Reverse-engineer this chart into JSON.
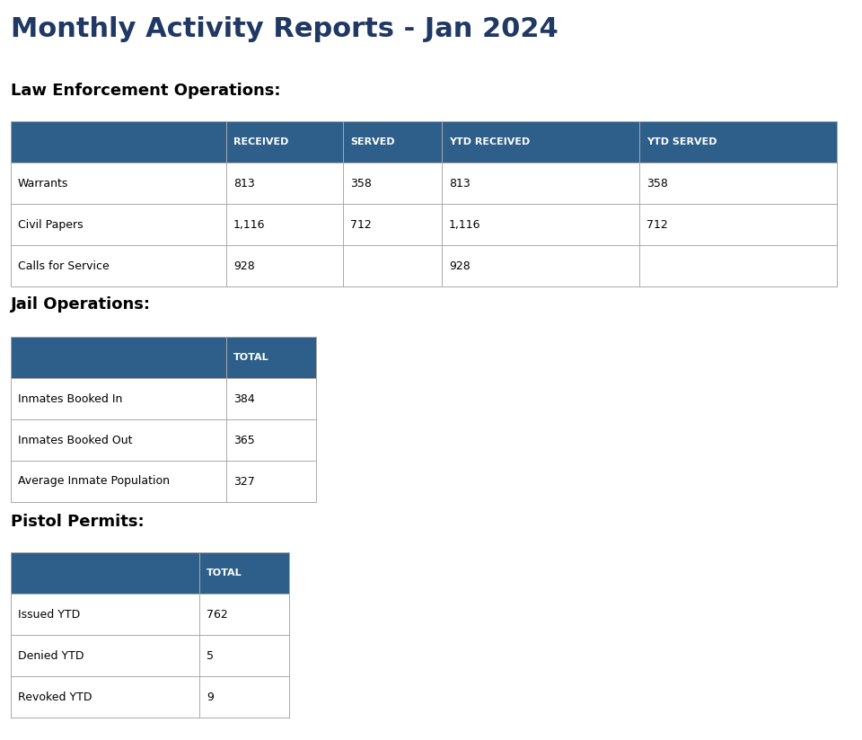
{
  "title": "Monthly Activity Reports - Jan 2024",
  "title_color": "#1F3864",
  "background_color": "#ffffff",
  "header_bg_color": "#2E5F8A",
  "header_text_color": "#ffffff",
  "row_text_color": "#000000",
  "border_color": "#aaaaaa",
  "section_label_color": "#000000",
  "law_section_title": "Law Enforcement Operations:",
  "law_columns": [
    "",
    "RECEIVED",
    "SERVED",
    "YTD RECEIVED",
    "YTD SERVED"
  ],
  "law_rows": [
    [
      "Warrants",
      "813",
      "358",
      "813",
      "358"
    ],
    [
      "Civil Papers",
      "1,116",
      "712",
      "1,116",
      "712"
    ],
    [
      "Calls for Service",
      "928",
      "",
      "928",
      ""
    ]
  ],
  "jail_section_title": "Jail Operations:",
  "jail_columns": [
    "",
    "TOTAL"
  ],
  "jail_rows": [
    [
      "Inmates Booked In",
      "384"
    ],
    [
      "Inmates Booked Out",
      "365"
    ],
    [
      "Average Inmate Population",
      "327"
    ]
  ],
  "pistol_section_title": "Pistol Permits:",
  "pistol_columns": [
    "",
    "TOTAL"
  ],
  "pistol_rows": [
    [
      "Issued YTD",
      "762"
    ],
    [
      "Denied YTD",
      "5"
    ],
    [
      "Revoked YTD",
      "9"
    ]
  ]
}
